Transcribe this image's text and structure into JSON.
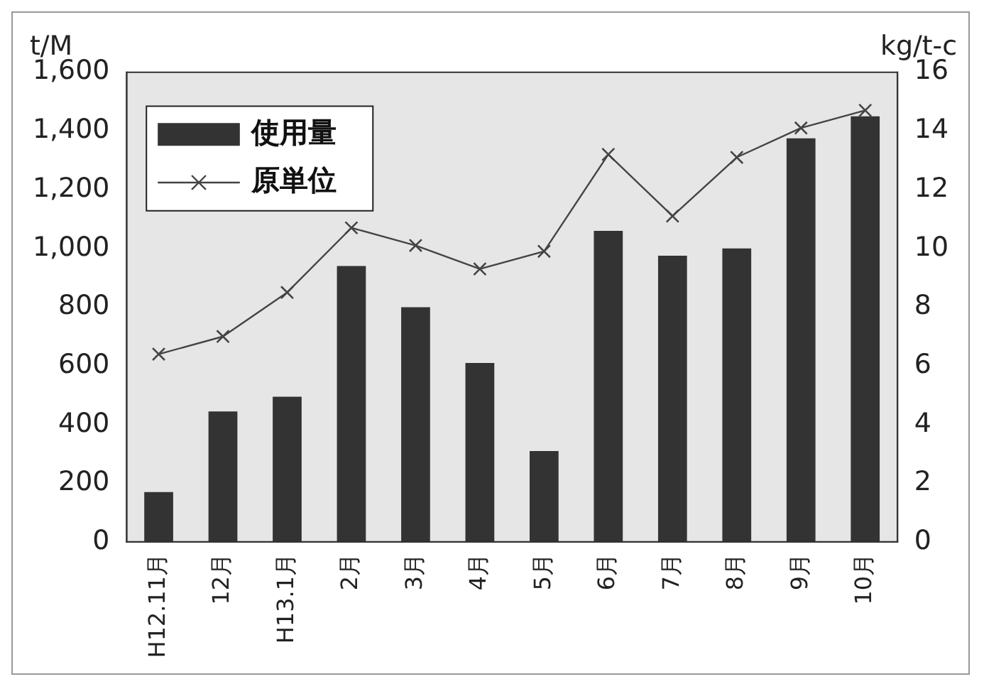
{
  "chart_data": {
    "type": "bar",
    "categories": [
      "H12.11月",
      "12月",
      "H13.1月",
      "2月",
      "3月",
      "4月",
      "5月",
      "6月",
      "7月",
      "8月",
      "9月",
      "10月"
    ],
    "series": [
      {
        "name": "使用量",
        "color": "#333333",
        "values": [
          170,
          445,
          495,
          940,
          800,
          610,
          310,
          1060,
          975,
          1000,
          1375,
          1450
        ]
      },
      {
        "name": "原単位",
        "type": "line",
        "axis": "y2",
        "color": "#444444",
        "marker": "cross",
        "values": [
          6.4,
          7.0,
          8.5,
          10.7,
          10.1,
          9.3,
          9.9,
          13.2,
          11.1,
          13.1,
          14.1,
          14.7
        ]
      }
    ],
    "ylabel": "t/M",
    "y2label": "kg/t-c",
    "ylim": [
      0,
      1600
    ],
    "yticks": [
      {
        "value": 0,
        "label": "0"
      },
      {
        "value": 200,
        "label": "200"
      },
      {
        "value": 400,
        "label": "400"
      },
      {
        "value": 600,
        "label": "600"
      },
      {
        "value": 800,
        "label": "800"
      },
      {
        "value": 1000,
        "label": "1,000"
      },
      {
        "value": 1200,
        "label": "1,200"
      },
      {
        "value": 1400,
        "label": "1,400"
      },
      {
        "value": 1600,
        "label": "1,600"
      }
    ],
    "y2lim": [
      0,
      16
    ],
    "y2ticks": [
      0,
      2,
      4,
      6,
      8,
      10,
      12,
      14,
      16
    ],
    "legend": "top left",
    "grid": false
  }
}
